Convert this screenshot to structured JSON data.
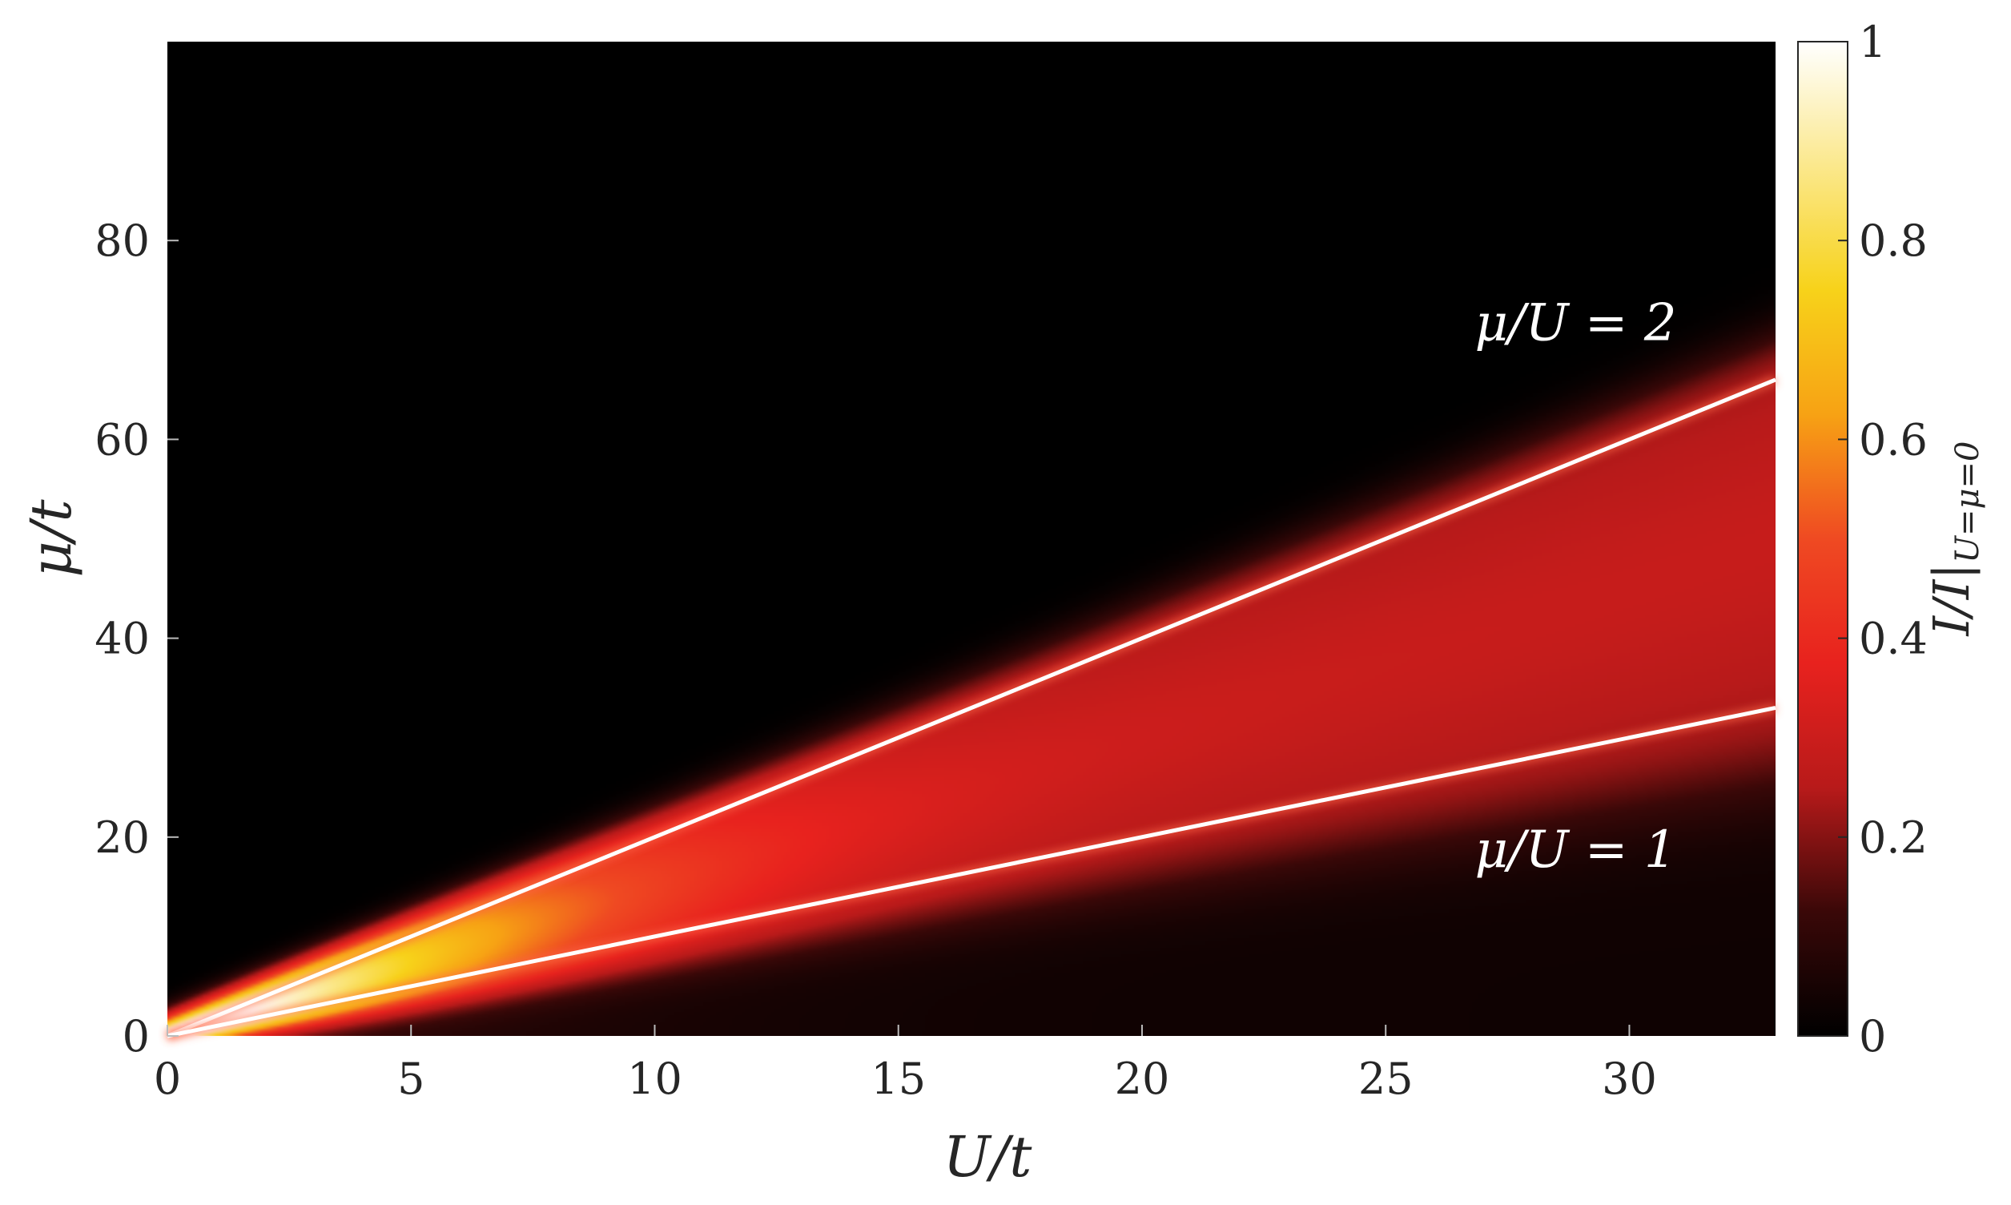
{
  "chart_data": {
    "type": "heatmap",
    "xlabel": "U/t",
    "ylabel": "μ/t",
    "xlim": [
      0,
      33
    ],
    "ylim": [
      0,
      100
    ],
    "xticks": [
      0,
      5,
      10,
      15,
      20,
      25,
      30
    ],
    "yticks": [
      0,
      20,
      40,
      60,
      80
    ],
    "colorbar": {
      "label_main": "I/I|",
      "label_sub": "U=μ=0",
      "range": [
        0,
        1
      ],
      "ticks": [
        0,
        0.2,
        0.4,
        0.6,
        0.8,
        1
      ],
      "tick_labels": [
        "0",
        "0.2",
        "0.4",
        "0.6",
        "0.8",
        "1"
      ],
      "colormap": "hot",
      "colors": [
        "#000000",
        "#3a0808",
        "#b81a1a",
        "#e8221e",
        "#ef4a22",
        "#f7a214",
        "#f7d21a",
        "#fbe88c",
        "#ffffff"
      ]
    },
    "lines": [
      {
        "slope": 2,
        "x": [
          0,
          33
        ],
        "y": [
          0,
          66
        ],
        "color": "#ffffff"
      },
      {
        "slope": 1,
        "x": [
          0,
          33
        ],
        "y": [
          0,
          33
        ],
        "color": "#ffffff"
      }
    ],
    "annotations": [
      {
        "text": "μ/U = 2",
        "x": 28.9,
        "y": 70
      },
      {
        "text": "μ/U = 1",
        "x": 28.9,
        "y": 17
      }
    ]
  }
}
